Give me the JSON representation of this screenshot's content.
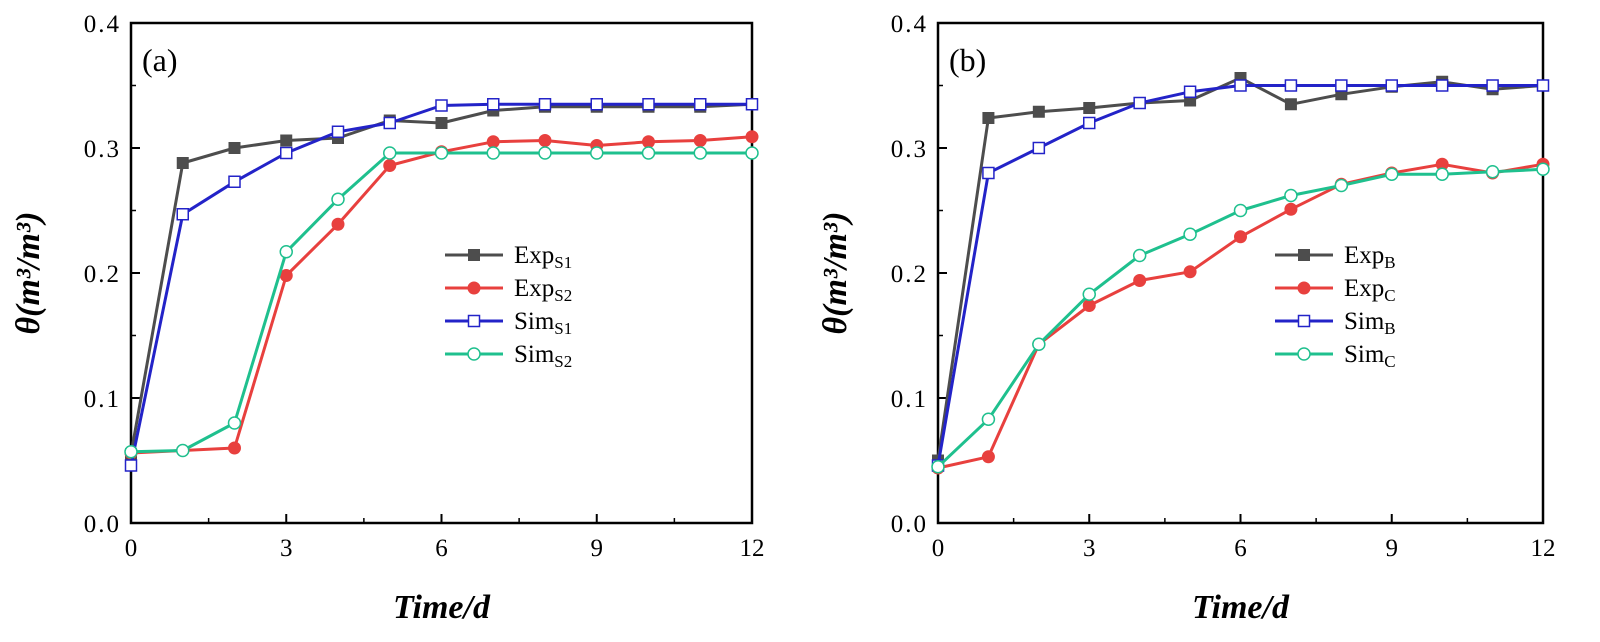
{
  "chart_data": [
    {
      "type": "line",
      "panel_label": "(a)",
      "xlabel": "Time/d",
      "ylabel": "θ(m³/m³)",
      "xlim": [
        0,
        12
      ],
      "ylim": [
        0,
        0.4
      ],
      "xticks": [
        "0",
        "3",
        "6",
        "9",
        "12"
      ],
      "yticks": [
        "0.0",
        "0.1",
        "0.2",
        "0.3",
        "0.4"
      ],
      "grid": false,
      "legend_position": "right-middle",
      "series": [
        {
          "name": "Exp",
          "subscript": "S1",
          "color": "#4d4d4d",
          "marker": "filled-square",
          "x": [
            0,
            1,
            2,
            3,
            4,
            5,
            6,
            7,
            8,
            9,
            10,
            11,
            12
          ],
          "y": [
            0.055,
            0.288,
            0.3,
            0.306,
            0.308,
            0.322,
            0.32,
            0.33,
            0.333,
            0.333,
            0.333,
            0.333,
            0.335
          ]
        },
        {
          "name": "Exp",
          "subscript": "S2",
          "color": "#e8403e",
          "marker": "filled-circle",
          "x": [
            0,
            1,
            2,
            3,
            4,
            5,
            6,
            7,
            8,
            9,
            10,
            11,
            12
          ],
          "y": [
            0.056,
            0.058,
            0.06,
            0.198,
            0.239,
            0.286,
            0.297,
            0.305,
            0.306,
            0.302,
            0.305,
            0.306,
            0.309
          ]
        },
        {
          "name": "Sim",
          "subscript": "S1",
          "color": "#2323c8",
          "marker": "open-square",
          "x": [
            0,
            1,
            2,
            3,
            4,
            5,
            6,
            7,
            8,
            9,
            10,
            11,
            12
          ],
          "y": [
            0.046,
            0.247,
            0.273,
            0.296,
            0.313,
            0.32,
            0.334,
            0.335,
            0.335,
            0.335,
            0.335,
            0.335,
            0.335
          ]
        },
        {
          "name": "Sim",
          "subscript": "S2",
          "color": "#1fc08e",
          "marker": "open-circle",
          "x": [
            0,
            1,
            2,
            3,
            4,
            5,
            6,
            7,
            8,
            9,
            10,
            11,
            12
          ],
          "y": [
            0.057,
            0.058,
            0.08,
            0.217,
            0.259,
            0.296,
            0.296,
            0.296,
            0.296,
            0.296,
            0.296,
            0.296,
            0.296
          ]
        }
      ]
    },
    {
      "type": "line",
      "panel_label": "(b)",
      "xlabel": "Time/d",
      "ylabel": "θ(m³/m³)",
      "xlim": [
        0,
        12
      ],
      "ylim": [
        0,
        0.4
      ],
      "xticks": [
        "0",
        "3",
        "6",
        "9",
        "12"
      ],
      "yticks": [
        "0.0",
        "0.1",
        "0.2",
        "0.3",
        "0.4"
      ],
      "grid": false,
      "legend_position": "right-middle",
      "series": [
        {
          "name": "Exp",
          "subscript": "B",
          "color": "#4d4d4d",
          "marker": "filled-square",
          "x": [
            0,
            1,
            2,
            3,
            4,
            5,
            6,
            7,
            8,
            9,
            10,
            11,
            12
          ],
          "y": [
            0.05,
            0.324,
            0.329,
            0.332,
            0.336,
            0.338,
            0.356,
            0.335,
            0.343,
            0.349,
            0.353,
            0.347,
            0.35
          ]
        },
        {
          "name": "Exp",
          "subscript": "C",
          "color": "#e8403e",
          "marker": "filled-circle",
          "x": [
            0,
            1,
            2,
            3,
            4,
            5,
            6,
            7,
            8,
            9,
            10,
            11,
            12
          ],
          "y": [
            0.044,
            0.053,
            0.143,
            0.174,
            0.194,
            0.201,
            0.229,
            0.251,
            0.271,
            0.28,
            0.287,
            0.28,
            0.287
          ]
        },
        {
          "name": "Sim",
          "subscript": "B",
          "color": "#2323c8",
          "marker": "open-square",
          "x": [
            0,
            1,
            2,
            3,
            4,
            5,
            6,
            7,
            8,
            9,
            10,
            11,
            12
          ],
          "y": [
            0.046,
            0.28,
            0.3,
            0.32,
            0.336,
            0.345,
            0.35,
            0.35,
            0.35,
            0.35,
            0.35,
            0.35,
            0.35
          ]
        },
        {
          "name": "Sim",
          "subscript": "C",
          "color": "#1fc08e",
          "marker": "open-circle",
          "x": [
            0,
            1,
            2,
            3,
            4,
            5,
            6,
            7,
            8,
            9,
            10,
            11,
            12
          ],
          "y": [
            0.045,
            0.083,
            0.143,
            0.183,
            0.214,
            0.231,
            0.25,
            0.262,
            0.27,
            0.279,
            0.279,
            0.281,
            0.283
          ]
        }
      ]
    }
  ]
}
